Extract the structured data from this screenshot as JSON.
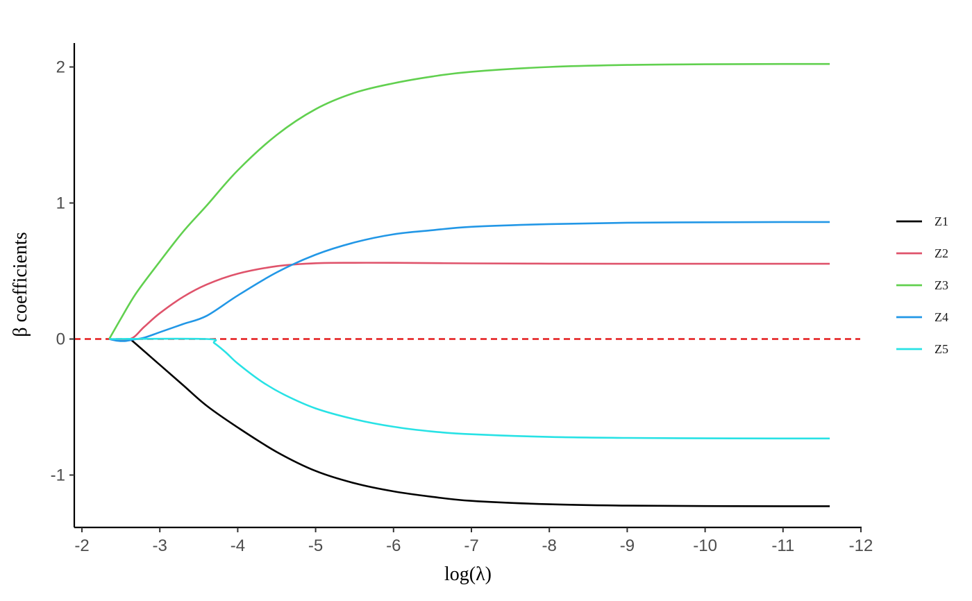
{
  "chart_data": {
    "type": "line",
    "xlabel": "log(λ)",
    "ylabel": "β coefficients",
    "xlim": [
      -1.9,
      -12.1
    ],
    "ylim": [
      -1.38,
      2.18
    ],
    "x_reversed": true,
    "x_ticks": [
      -2,
      -3,
      -4,
      -5,
      -6,
      -7,
      -8,
      -9,
      -10,
      -11,
      -12
    ],
    "x_tick_labels": [
      "-2",
      "-3",
      "-4",
      "-5",
      "-6",
      "-7",
      "-8",
      "-9",
      "-10",
      "-11",
      "-12"
    ],
    "y_ticks": [
      -1,
      0,
      1,
      2
    ],
    "y_tick_labels": [
      "-1",
      "0",
      "1",
      "2"
    ],
    "grid": false,
    "legend_position": "right",
    "reference_line": {
      "y": 0,
      "style": "dashed",
      "color": "#e41a1c"
    },
    "series": [
      {
        "name": "Z1",
        "color": "#000000",
        "x": [
          -2.62,
          -2.8,
          -3.0,
          -3.3,
          -3.6,
          -4.0,
          -4.5,
          -5.0,
          -5.5,
          -6.0,
          -6.5,
          -7.0,
          -8.0,
          -9.0,
          -10.0,
          -11.0,
          -11.6
        ],
        "y": [
          0,
          -0.09,
          -0.19,
          -0.34,
          -0.49,
          -0.65,
          -0.83,
          -0.97,
          -1.06,
          -1.12,
          -1.16,
          -1.19,
          -1.215,
          -1.225,
          -1.228,
          -1.229,
          -1.229
        ]
      },
      {
        "name": "Z2",
        "color": "#df536b",
        "x": [
          -2.35,
          -2.62,
          -2.8,
          -3.0,
          -3.3,
          -3.6,
          -4.0,
          -4.5,
          -5.0,
          -5.5,
          -6.0,
          -7.0,
          -8.0,
          -9.0,
          -10.0,
          -11.0,
          -11.6
        ],
        "y": [
          0,
          0,
          0.09,
          0.19,
          0.31,
          0.4,
          0.48,
          0.535,
          0.557,
          0.56,
          0.56,
          0.556,
          0.554,
          0.553,
          0.553,
          0.553,
          0.553
        ]
      },
      {
        "name": "Z3",
        "color": "#61d04f",
        "x": [
          -2.35,
          -2.5,
          -2.7,
          -3.0,
          -3.3,
          -3.6,
          -4.0,
          -4.5,
          -5.0,
          -5.5,
          -6.0,
          -6.5,
          -7.0,
          -8.0,
          -9.0,
          -10.0,
          -11.0,
          -11.6
        ],
        "y": [
          0,
          0.15,
          0.34,
          0.57,
          0.79,
          0.98,
          1.24,
          1.5,
          1.69,
          1.81,
          1.88,
          1.93,
          1.965,
          2.0,
          2.015,
          2.02,
          2.022,
          2.022
        ]
      },
      {
        "name": "Z4",
        "color": "#2297e6",
        "x": [
          -2.35,
          -2.45,
          -2.55,
          -2.65,
          -2.8,
          -3.0,
          -3.3,
          -3.6,
          -4.0,
          -4.5,
          -5.0,
          -5.5,
          -6.0,
          -6.5,
          -7.0,
          -8.0,
          -9.0,
          -10.0,
          -11.0,
          -11.6
        ],
        "y": [
          0,
          -0.012,
          -0.015,
          -0.005,
          0.01,
          0.05,
          0.11,
          0.17,
          0.32,
          0.49,
          0.62,
          0.71,
          0.77,
          0.8,
          0.825,
          0.845,
          0.855,
          0.858,
          0.86,
          0.86
        ]
      },
      {
        "name": "Z5",
        "color": "#28e2e5",
        "x": [
          -2.35,
          -3.6,
          -3.7,
          -3.85,
          -4.0,
          -4.3,
          -4.6,
          -5.0,
          -5.5,
          -6.0,
          -6.5,
          -7.0,
          -8.0,
          -9.0,
          -10.0,
          -11.0,
          -11.6
        ],
        "y": [
          0,
          0,
          -0.03,
          -0.1,
          -0.18,
          -0.31,
          -0.41,
          -0.51,
          -0.59,
          -0.645,
          -0.68,
          -0.7,
          -0.72,
          -0.727,
          -0.73,
          -0.731,
          -0.731
        ]
      }
    ]
  }
}
